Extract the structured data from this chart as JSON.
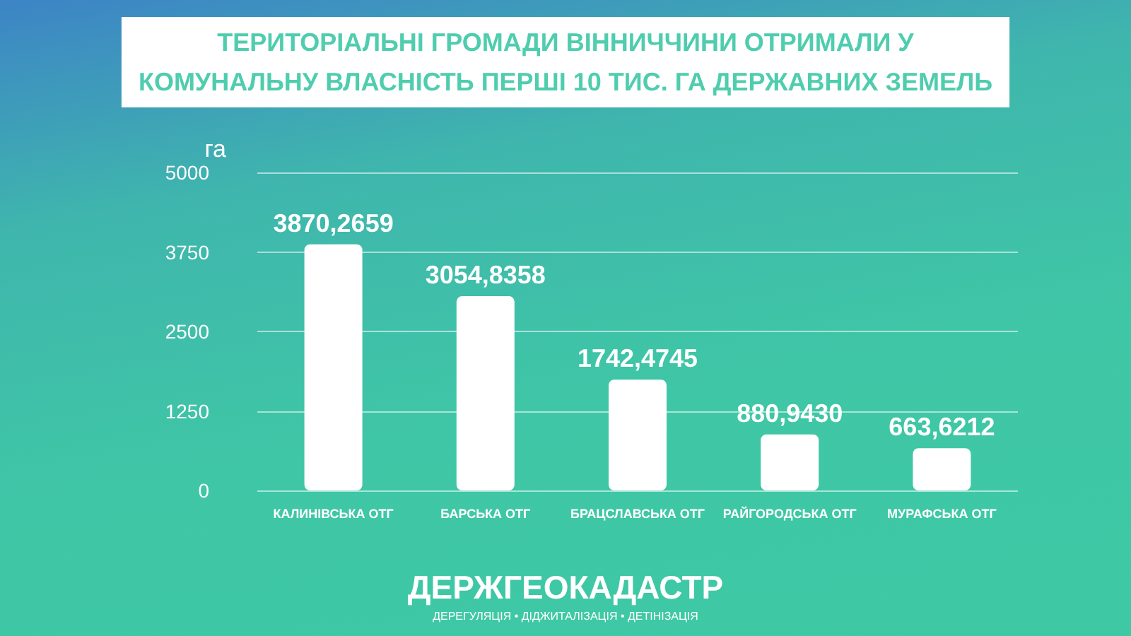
{
  "chart_data": {
    "type": "bar",
    "title": "ТЕРИТОРІАЛЬНІ ГРОМАДИ ВІННИЧЧИНИ ОТРИМАЛИ У\nКОМУНАЛЬНУ ВЛАСНІСТЬ ПЕРШІ 10 ТИС. ГА ДЕРЖАВНИХ ЗЕМЕЛЬ",
    "ylabel": "га",
    "categories": [
      "КАЛИНІВСЬКА ОТГ",
      "БАРСЬКА ОТГ",
      "БРАЦСЛАВСЬКА ОТГ",
      "РАЙГОРОДСЬКА ОТГ",
      "МУРАФСЬКА ОТГ"
    ],
    "values": [
      3870.2659,
      3054.8358,
      1742.4745,
      880.943,
      663.6212
    ],
    "value_labels": [
      "3870,2659",
      "3054,8358",
      "1742,4745",
      "880,9430",
      "663,6212"
    ],
    "color": "#ffffff",
    "ylim": [
      0,
      5000
    ],
    "yticks": [
      0,
      1250,
      2500,
      3750,
      5000
    ],
    "grid": "y",
    "annotations": [
      "ДЕРЖГЕОКАДАСТР",
      "ДЕРЕГУЛЯЦІЯ • ДІДЖИТАЛІЗАЦІЯ • ДЕТІНІЗАЦІЯ"
    ]
  }
}
